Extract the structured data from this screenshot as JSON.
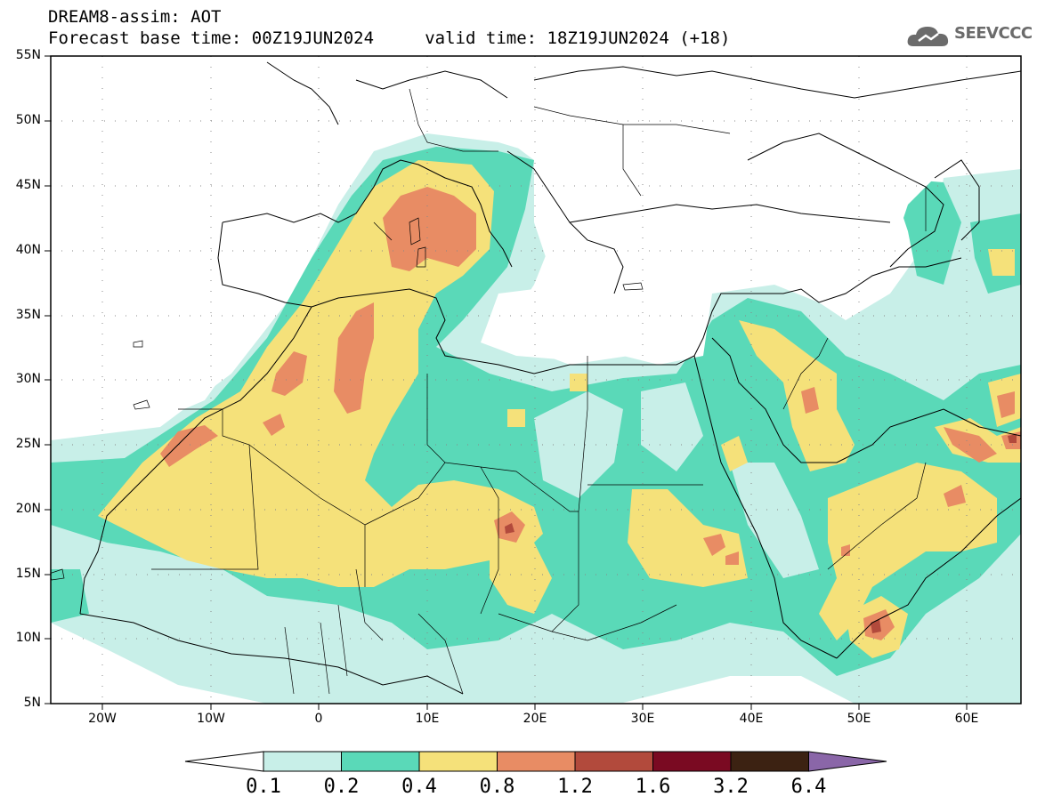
{
  "header": {
    "title": "DREAM8-assim: AOT",
    "subtitle": "Forecast base time: 00Z19JUN2024     valid time: 18Z19JUN2024 (+18)",
    "brand": "SEEVCCC"
  },
  "map": {
    "lat_labels": [
      "55N",
      "50N",
      "45N",
      "40N",
      "35N",
      "30N",
      "25N",
      "20N",
      "15N",
      "10N",
      "5N"
    ],
    "lon_labels": [
      "20W",
      "10W",
      "0",
      "10E",
      "20E",
      "30E",
      "40E",
      "50E",
      "60E"
    ],
    "extent": {
      "lon": [
        -25,
        65
      ],
      "lat": [
        5,
        55
      ]
    }
  },
  "colorbar": {
    "labels": [
      "0.1",
      "0.2",
      "0.4",
      "0.8",
      "1.2",
      "1.6",
      "3.2",
      "6.4"
    ],
    "colors": [
      "#ffffff",
      "#c8efe8",
      "#5ad9b8",
      "#f5e17a",
      "#e88c64",
      "#b24a3c",
      "#7a0a22",
      "#3c2212",
      "#8a66a8"
    ]
  },
  "colors": {
    "c1": "#c8efe8",
    "c2": "#5ad9b8",
    "c3": "#f5e17a",
    "c4": "#e88c64",
    "c5": "#b24a3c"
  }
}
